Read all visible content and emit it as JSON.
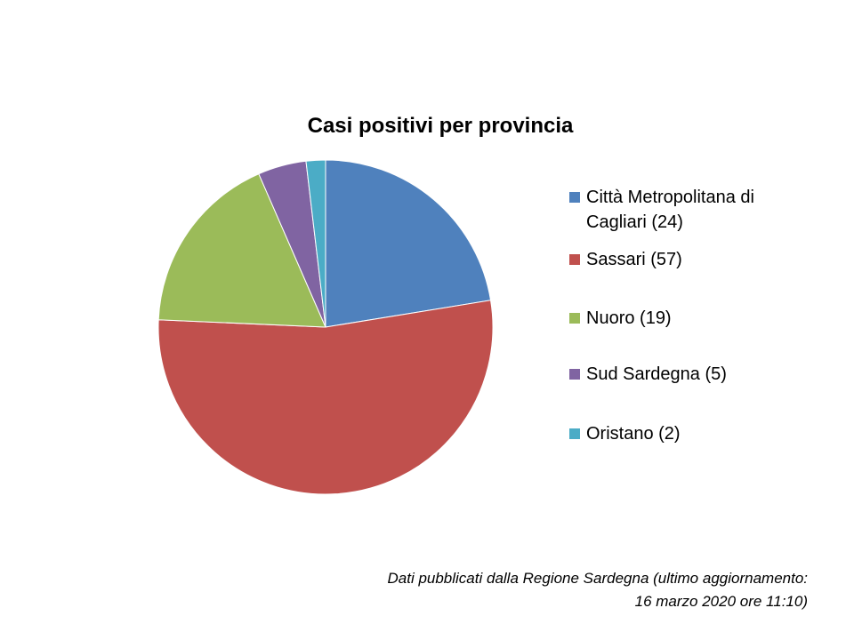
{
  "chart_data": {
    "type": "pie",
    "title": "Casi positivi per provincia",
    "categories": [
      "Città Metropolitana di Cagliari",
      "Sassari",
      "Nuoro",
      "Sud Sardegna",
      "Oristano"
    ],
    "values": [
      24,
      57,
      19,
      5,
      2
    ],
    "legend_labels": [
      "Città Metropolitana di Cagliari (24)",
      "Sassari (57)",
      "Nuoro (19)",
      "Sud Sardegna (5)",
      "Oristano (2)"
    ],
    "colors": [
      "#4F81BD",
      "#C0504D",
      "#9BBB59",
      "#8064A2",
      "#4BACC6"
    ],
    "legend_position": "right"
  },
  "footer": {
    "line1": "Dati pubblicati dalla Regione Sardegna (ultimo aggiornamento:",
    "line2": "16 marzo 2020 ore 11:10)"
  }
}
